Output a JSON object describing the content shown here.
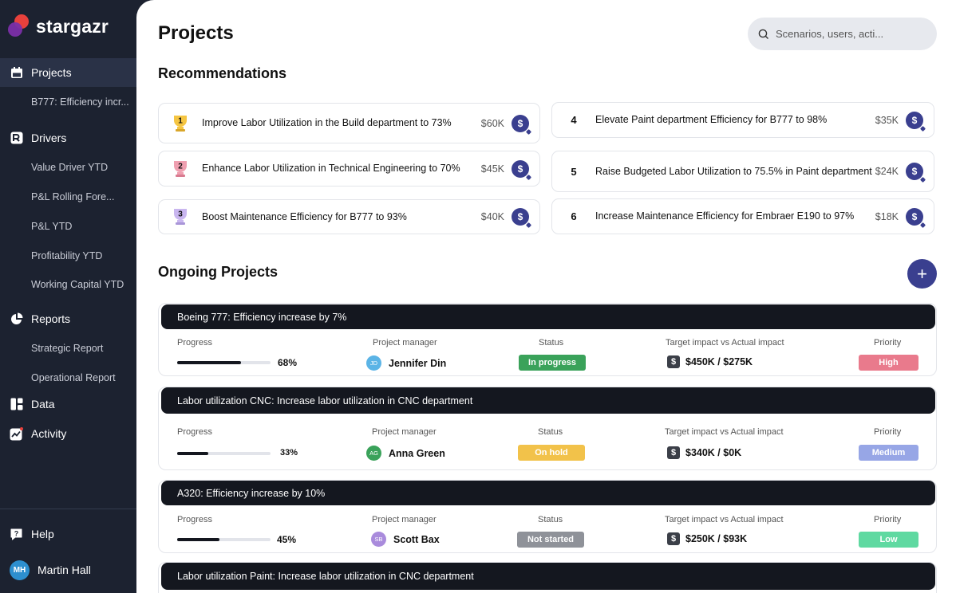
{
  "app": {
    "name": "stargazr"
  },
  "sidebar": {
    "projects": {
      "label": "Projects",
      "sub": [
        "B777: Efficiency incr..."
      ]
    },
    "drivers": {
      "label": "Drivers",
      "sub": [
        "Value Driver YTD",
        "P&L Rolling Fore...",
        "P&L YTD",
        "Profitability YTD",
        "Working Capital YTD"
      ]
    },
    "reports": {
      "label": "Reports",
      "sub": [
        "Strategic Report",
        "Operational Report"
      ]
    },
    "data": {
      "label": "Data"
    },
    "activity": {
      "label": "Activity"
    },
    "help": {
      "label": "Help"
    },
    "user": {
      "initials": "MH",
      "name": "Martin Hall"
    }
  },
  "header": {
    "title": "Projects",
    "search_placeholder": "Scenarios, users, acti..."
  },
  "recommendations": {
    "title": "Recommendations",
    "items": [
      {
        "rank": "1",
        "text": "Improve Labor Utilization in the Build department to 73%",
        "amount": "$60K"
      },
      {
        "rank": "2",
        "text": "Enhance Labor Utilization in Technical Engineering to 70%",
        "amount": "$45K"
      },
      {
        "rank": "3",
        "text": "Boost Maintenance Efficiency for B777 to 93%",
        "amount": "$40K"
      },
      {
        "rank": "4",
        "text": "Elevate Paint department Efficiency for B777 to 98%",
        "amount": "$35K"
      },
      {
        "rank": "5",
        "text": "Raise Budgeted Labor Utilization to 75.5% in Paint department",
        "amount": "$24K"
      },
      {
        "rank": "6",
        "text": "Increase Maintenance Efficiency for Embraer E190 to 97%",
        "amount": "$18K"
      }
    ]
  },
  "ongoing": {
    "title": "Ongoing Projects",
    "add_label": "+",
    "col_labels": {
      "progress": "Progress",
      "manager": "Project manager",
      "status": "Status",
      "impact": "Target impact vs Actual impact",
      "priority": "Priority"
    },
    "projects": [
      {
        "title": "Boeing 777: Efficiency increase by 7%",
        "progress": 68,
        "progress_label": "68%",
        "manager_initials": "JD",
        "manager": "Jennifer Din",
        "manager_color": "#5bb4e6",
        "status": "In progress",
        "status_color": "#3aa25a",
        "impact": "$450K / $275K",
        "priority": "High",
        "priority_color": "#e97a8c"
      },
      {
        "title": "Labor utilization CNC: Increase labor utilization in CNC department",
        "progress": 33,
        "progress_label": "33%",
        "manager_initials": "AG",
        "manager": "Anna Green",
        "manager_color": "#3aa25a",
        "status": "On hold",
        "status_color": "#f2c24a",
        "impact": "$340K / $0K",
        "priority": "Medium",
        "priority_color": "#97a6e6"
      },
      {
        "title": "A320: Efficiency increase by 10%",
        "progress": 45,
        "progress_label": "45%",
        "manager_initials": "SB",
        "manager": "Scott Bax",
        "manager_color": "#a98bdc",
        "status": "Not started",
        "status_color": "#8f9299",
        "impact": "$250K / $93K",
        "priority": "Low",
        "priority_color": "#5fd9a1"
      },
      {
        "title": "Labor utilization Paint: Increase labor utilization in CNC department"
      }
    ]
  }
}
